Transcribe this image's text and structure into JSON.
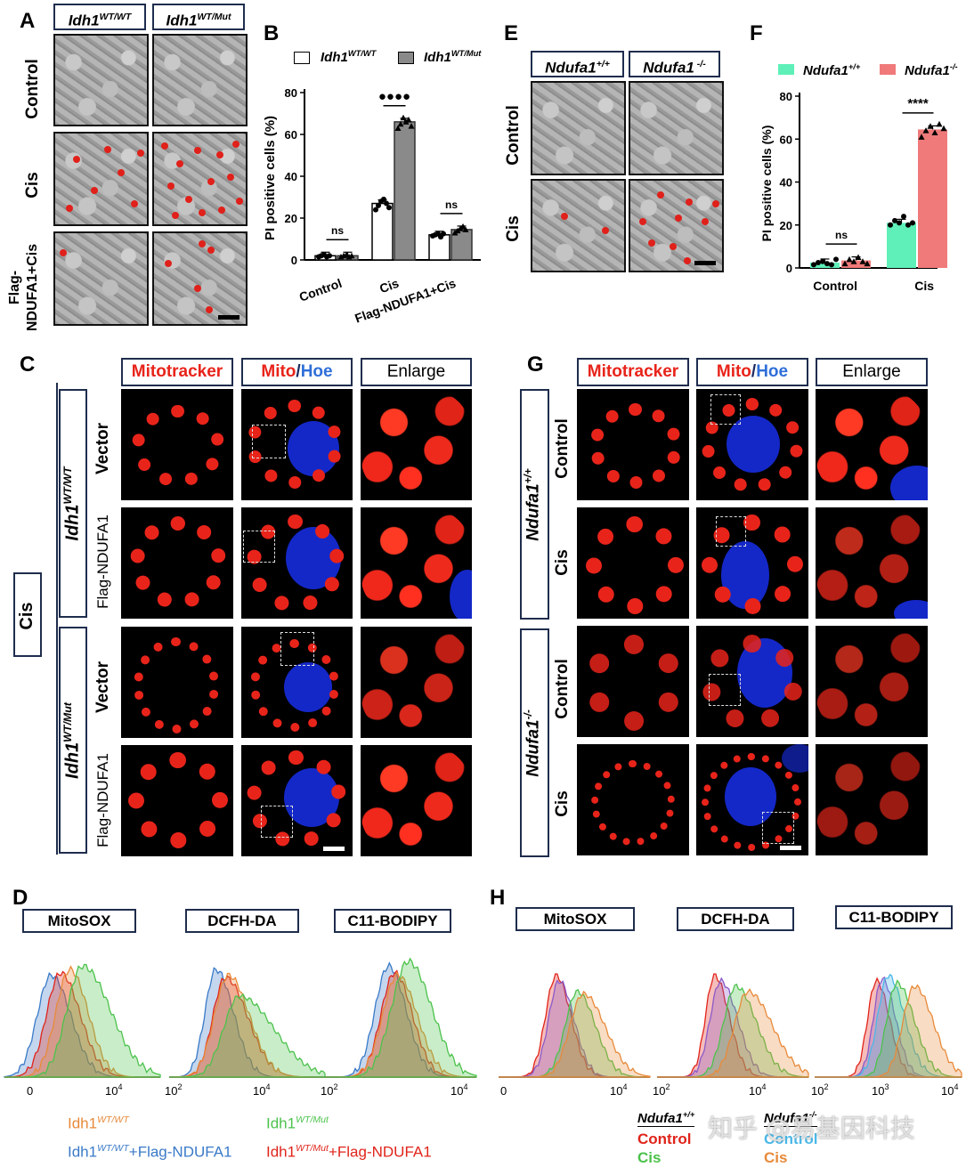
{
  "panels": {
    "A": {
      "label": "A",
      "col_headers": [
        {
          "base": "Idh1",
          "sup": "WT/WT"
        },
        {
          "base": "Idh1",
          "sup": "WT/Mut"
        }
      ],
      "row_labels": [
        "Control",
        "Cis",
        "Flag-\nNDUFA1+Cis"
      ]
    },
    "B": {
      "label": "B",
      "legend": [
        {
          "base": "Idh1",
          "sup": "WT/WT"
        },
        {
          "base": "Idh1",
          "sup": "WT/Mut"
        }
      ],
      "ylabel": "PI positive cells (%)",
      "yticks": [
        "0",
        "20",
        "40",
        "60",
        "80"
      ],
      "categories": [
        "Control",
        "Cis",
        "Flag-NDUFA1+Cis"
      ],
      "sig": [
        "ns",
        "●●●●",
        "ns"
      ]
    },
    "C": {
      "label": "C",
      "col_headers": [
        {
          "parts": [
            {
              "t": "Mitotracker",
              "c": "#e8241a"
            }
          ]
        },
        {
          "parts": [
            {
              "t": "Mito",
              "c": "#e8241a"
            },
            {
              "t": "/",
              "c": "#1a2a60"
            },
            {
              "t": "Hoe",
              "c": "#2f6fd8"
            }
          ]
        },
        {
          "parts": [
            {
              "t": "Enlarge",
              "c": "#000"
            }
          ]
        }
      ],
      "group_label": "Cis",
      "genotypes": [
        {
          "base": "Idh1",
          "sup": "WT/WT"
        },
        {
          "base": "Idh1",
          "sup": "WT/Mut"
        }
      ],
      "row_labels": [
        "Vector",
        "Flag-NDUFA1",
        "Vector",
        "Flag-NDUFA1"
      ]
    },
    "D": {
      "label": "D",
      "titles": [
        "MitoSOX",
        "DCFH-DA",
        "C11-BODIPY"
      ],
      "xticks": [
        [
          "0",
          "10",
          "4"
        ],
        [
          "10",
          "2",
          "10",
          "4"
        ],
        [
          "10",
          "2",
          "10",
          "4"
        ]
      ],
      "legend": [
        {
          "base": "Idh1",
          "sup": "WT/WT",
          "rest": "",
          "color": "#e88a3a"
        },
        {
          "base": "Idh1",
          "sup": "WT/Mut",
          "rest": "",
          "color": "#4cc24c"
        },
        {
          "base": "Idh1",
          "sup": "WT/WT",
          "rest": "+Flag-NDUFA1",
          "color": "#3a7ac8"
        },
        {
          "base": "Idh1",
          "sup": "WT/Mut",
          "rest": "+Flag-NDUFA1",
          "color": "#e0241a"
        }
      ]
    },
    "E": {
      "label": "E",
      "col_headers": [
        {
          "base": "Ndufa1",
          "sup": "+/+"
        },
        {
          "base": "Ndufa1",
          "sup": " -/-"
        }
      ],
      "row_labels": [
        "Control",
        "Cis"
      ]
    },
    "F": {
      "label": "F",
      "legend": [
        {
          "base": "Ndufa1",
          "sup": "+/+",
          "color": "#5ef0b8"
        },
        {
          "base": "Ndufa1",
          "sup": "-/-",
          "color": "#f07a7a"
        }
      ],
      "ylabel": "PI positive cells (%)",
      "yticks": [
        "0",
        "20",
        "40",
        "60",
        "80"
      ],
      "categories": [
        "Control",
        "Cis"
      ],
      "sig": [
        "ns",
        "****"
      ]
    },
    "G": {
      "label": "G",
      "col_headers": [
        {
          "parts": [
            {
              "t": "Mitotracker",
              "c": "#e8241a"
            }
          ]
        },
        {
          "parts": [
            {
              "t": "Mito",
              "c": "#e8241a"
            },
            {
              "t": "/",
              "c": "#1a2a60"
            },
            {
              "t": "Hoe",
              "c": "#2f6fd8"
            }
          ]
        },
        {
          "parts": [
            {
              "t": "Enlarge",
              "c": "#000"
            }
          ]
        }
      ],
      "genotypes": [
        {
          "base": "Ndufa1",
          "sup": "+/+"
        },
        {
          "base": "Ndufa1",
          "sup": "-/-"
        }
      ],
      "row_labels": [
        "Control",
        "Cis",
        "Control",
        "Cis"
      ]
    },
    "H": {
      "label": "H",
      "titles": [
        "MitoSOX",
        "DCFH-DA",
        "C11-BODIPY"
      ],
      "xticks": [
        [
          "0",
          "10",
          "4"
        ],
        [
          "10",
          "2",
          "10",
          "4"
        ],
        [
          "10",
          "2",
          "10",
          "3",
          "10",
          "4"
        ]
      ],
      "legend_headers": [
        {
          "base": "Ndufa1",
          "sup": "+/+"
        },
        {
          "base": "Ndufa1",
          "sup": "-/-"
        }
      ],
      "legend_items": [
        {
          "text": "Control",
          "color": "#e0241a"
        },
        {
          "text": "Cis",
          "color": "#4cc24c"
        },
        {
          "text": "Control",
          "color": "#4ab8e8"
        },
        {
          "text": "Cis",
          "color": "#e88a3a"
        }
      ],
      "watermark": "知乎 @易基因科技"
    }
  },
  "chart_data": [
    {
      "type": "bar",
      "panel": "B",
      "ylabel": "PI positive cells (%)",
      "ylim": [
        0,
        80
      ],
      "categories": [
        "Control",
        "Cis",
        "Flag-NDUFA1+Cis"
      ],
      "series": [
        {
          "name": "Idh1WT/WT",
          "values": [
            2,
            27,
            12
          ],
          "color": "#ffffff",
          "points": [
            [
              1.5,
              2,
              2.5,
              1.5,
              2
            ],
            [
              24,
              26,
              28,
              29,
              27,
              25
            ],
            [
              11.5,
              12,
              12.5,
              11,
              12.5
            ]
          ]
        },
        {
          "name": "Idh1WT/Mut",
          "values": [
            2,
            66,
            14.5
          ],
          "color": "#8a8a8a",
          "points": [
            [
              1.5,
              2,
              2.5,
              1.5,
              2
            ],
            [
              63,
              65,
              68,
              66,
              67,
              64
            ],
            [
              13,
              14,
              15,
              16,
              14.5
            ]
          ]
        }
      ],
      "sig": [
        "ns",
        "●●●●",
        "ns"
      ]
    },
    {
      "type": "bar",
      "panel": "F",
      "ylabel": "PI positive cells (%)",
      "ylim": [
        0,
        80
      ],
      "categories": [
        "Control",
        "Cis"
      ],
      "series": [
        {
          "name": "Ndufa1+/+",
          "values": [
            2.5,
            21
          ],
          "color": "#5ef0b8",
          "points": [
            [
              1.5,
              2.5,
              3,
              2,
              1.5,
              4
            ],
            [
              20,
              22,
              21,
              24,
              20,
              21
            ]
          ]
        },
        {
          "name": "Ndufa1-/-",
          "values": [
            3.5,
            64.5
          ],
          "color": "#f07a7a",
          "points": [
            [
              2,
              4,
              3,
              5,
              3,
              2
            ],
            [
              61,
              64,
              66,
              63,
              67,
              65
            ]
          ]
        }
      ],
      "sig": [
        "ns",
        "****"
      ]
    }
  ]
}
